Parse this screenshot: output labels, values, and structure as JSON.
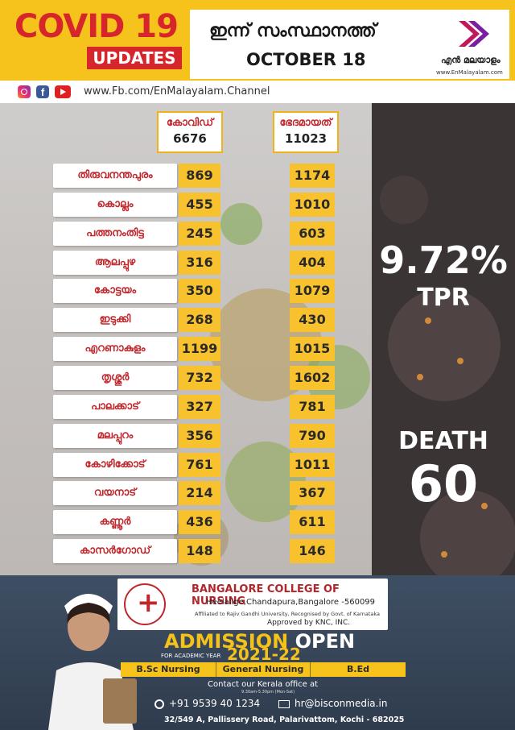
{
  "header": {
    "title": "COVID 19",
    "badge": "UPDATES",
    "headline_ml": "ഇന്ന് സംസ്ഥാനത്ത്",
    "date": "OCTOBER 18",
    "logo_name": "എൻ മലയാളം",
    "logo_url": "www.EnMalayalam.com"
  },
  "social": {
    "icons": [
      "instagram-icon",
      "facebook-icon",
      "youtube-icon"
    ],
    "facebook_letter": "f",
    "fb_url": "www.Fb.com/EnMalayalam.Channel"
  },
  "summary": {
    "covid_label": "കോവിഡ്",
    "covid_total": "6676",
    "recovered_label": "ഭേദമായത്",
    "recovered_total": "11023"
  },
  "districts": [
    {
      "name": "തിരുവനന്തപുരം",
      "covid": "869",
      "recovered": "1174"
    },
    {
      "name": "കൊല്ലം",
      "covid": "455",
      "recovered": "1010"
    },
    {
      "name": "പത്തനംതിട്ട",
      "covid": "245",
      "recovered": "603"
    },
    {
      "name": "ആലപ്പുഴ",
      "covid": "316",
      "recovered": "404"
    },
    {
      "name": "കോട്ടയം",
      "covid": "350",
      "recovered": "1079"
    },
    {
      "name": "ഇടുക്കി",
      "covid": "268",
      "recovered": "430"
    },
    {
      "name": "എറണാകുളം",
      "covid": "1199",
      "recovered": "1015"
    },
    {
      "name": "തൃശ്ശൂർ",
      "covid": "732",
      "recovered": "1602"
    },
    {
      "name": "പാലക്കാട്",
      "covid": "327",
      "recovered": "781"
    },
    {
      "name": "മലപ്പുറം",
      "covid": "356",
      "recovered": "790"
    },
    {
      "name": "കോഴിക്കോട്",
      "covid": "761",
      "recovered": "1011"
    },
    {
      "name": "വയനാട്",
      "covid": "214",
      "recovered": "367"
    },
    {
      "name": "കണ്ണൂർ",
      "covid": "436",
      "recovered": "611"
    },
    {
      "name": "കാസർഗോഡ്",
      "covid": "148",
      "recovered": "146"
    }
  ],
  "stats": {
    "tpr_value": "9.72%",
    "tpr_label": "TPR",
    "death_label": "DEATH",
    "death_value": "60"
  },
  "ad": {
    "college_name": "BANGALORE COLLEGE OF NURSING",
    "college_address": "Heelalige,Chandapura,Bangalore -560099",
    "affiliation": "Affiliated to Rajiv Gandhi University, Recognised by Govt. of Karnataka",
    "approval": "Approved by KNC, INC.",
    "admission": "ADMISSION",
    "open": "OPEN",
    "academic_label": "FOR ACADEMIC YEAR",
    "academic_year": "2021-22",
    "courses": [
      "B.Sc Nursing",
      "General Nursing",
      "B.Ed"
    ],
    "contact_line": "Contact our Kerala office at",
    "timing": "9.30am-5.30pm (Mon-Sat)",
    "phone": "+91 9539 40 1234",
    "email": "hr@bisconmedia.in",
    "address": "32/549 A, Pallissery Road, Palarivattom, Kochi - 682025"
  },
  "colors": {
    "header_yellow": "#f6c21c",
    "brand_red": "#d7262b",
    "value_yellow": "#f7c22e",
    "dark_panel": "#3a3434",
    "ad_navy": "#2f3c4e"
  }
}
